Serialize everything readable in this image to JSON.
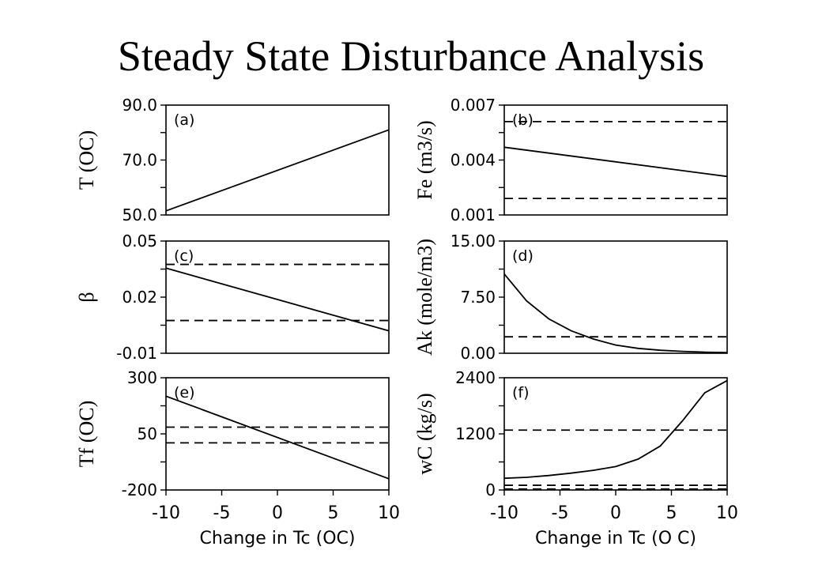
{
  "title": "Steady State Disturbance Analysis",
  "chart_data": [
    {
      "panel": "(a)",
      "type": "line",
      "ylabel": "T (OC)",
      "ylim": [
        50,
        90
      ],
      "yticks": [
        50,
        60,
        70,
        80,
        90
      ],
      "ytick_labels": [
        "50.0",
        "",
        "70.0",
        "",
        "90.0"
      ],
      "xlim": [
        -10,
        10
      ],
      "series": [
        {
          "x": [
            -10,
            10
          ],
          "y": [
            51.5,
            81
          ]
        }
      ],
      "hlines": []
    },
    {
      "panel": "(b)",
      "type": "line",
      "ylabel": "Fe (m3/s)",
      "ylim": [
        0.001,
        0.007
      ],
      "yticks": [
        0.001,
        0.0025,
        0.004,
        0.0055,
        0.007
      ],
      "ytick_labels": [
        "0.001",
        "",
        "0.004",
        "",
        "0.007"
      ],
      "xlim": [
        -10,
        10
      ],
      "series": [
        {
          "x": [
            -10,
            10
          ],
          "y": [
            0.0047,
            0.0031
          ]
        }
      ],
      "hlines": [
        0.0061,
        0.0019
      ]
    },
    {
      "panel": "(c)",
      "type": "line",
      "ylabel": "β",
      "ylim": [
        -0.01,
        0.05
      ],
      "yticks": [
        -0.01,
        0.005,
        0.02,
        0.035,
        0.05
      ],
      "ytick_labels": [
        "-0.01",
        "",
        "0.02",
        "",
        "0.05"
      ],
      "xlim": [
        -10,
        10
      ],
      "series": [
        {
          "x": [
            -10,
            10
          ],
          "y": [
            0.0355,
            0.002
          ]
        }
      ],
      "hlines": [
        0.0375,
        0.0075
      ]
    },
    {
      "panel": "(d)",
      "type": "line",
      "ylabel": "Ak (mole/m3)",
      "ylim": [
        0,
        15
      ],
      "yticks": [
        0,
        3.75,
        7.5,
        11.25,
        15
      ],
      "ytick_labels": [
        "0.00",
        "",
        "7.50",
        "",
        "15.00"
      ],
      "xlim": [
        -10,
        10
      ],
      "series": [
        {
          "x": [
            -10,
            -8,
            -6,
            -4,
            -2,
            0,
            2,
            4,
            6,
            8,
            10
          ],
          "y": [
            10.6,
            7.0,
            4.6,
            3.0,
            1.9,
            1.1,
            0.65,
            0.4,
            0.25,
            0.15,
            0.1
          ]
        }
      ],
      "hlines": [
        2.2
      ]
    },
    {
      "panel": "(e)",
      "type": "line",
      "ylabel": "Tf (OC)",
      "ylim": [
        -200,
        300
      ],
      "yticks": [
        -200,
        -75,
        50,
        175,
        300
      ],
      "ytick_labels": [
        "-200",
        "",
        "50",
        "",
        "300"
      ],
      "xlim": [
        -10,
        10
      ],
      "xlabel": "Change in Tc (OC)",
      "xticks": [
        -10,
        -5,
        0,
        5,
        10
      ],
      "xtick_labels": [
        "-10",
        "-5",
        "0",
        "5",
        "10"
      ],
      "series": [
        {
          "x": [
            -10,
            10
          ],
          "y": [
            218,
            -150
          ]
        }
      ],
      "hlines": [
        80,
        10
      ]
    },
    {
      "panel": "(f)",
      "type": "line",
      "ylabel": "wC (kg/s)",
      "ylim": [
        0,
        2400
      ],
      "yticks": [
        0,
        600,
        1200,
        1800,
        2400
      ],
      "ytick_labels": [
        "0",
        "",
        "1200",
        "",
        "2400"
      ],
      "xlim": [
        -10,
        10
      ],
      "xlabel": "Change in Tc (O C)",
      "xticks": [
        -10,
        -5,
        0,
        5,
        10
      ],
      "xtick_labels": [
        "-10",
        "-5",
        "0",
        "5",
        "10"
      ],
      "series": [
        {
          "x": [
            -10,
            -8,
            -6,
            -4,
            -2,
            0,
            2,
            4,
            6,
            8,
            10
          ],
          "y": [
            250,
            270,
            310,
            360,
            420,
            500,
            660,
            940,
            1480,
            2080,
            2340
          ]
        }
      ],
      "hlines": [
        1280,
        100,
        20
      ]
    }
  ]
}
